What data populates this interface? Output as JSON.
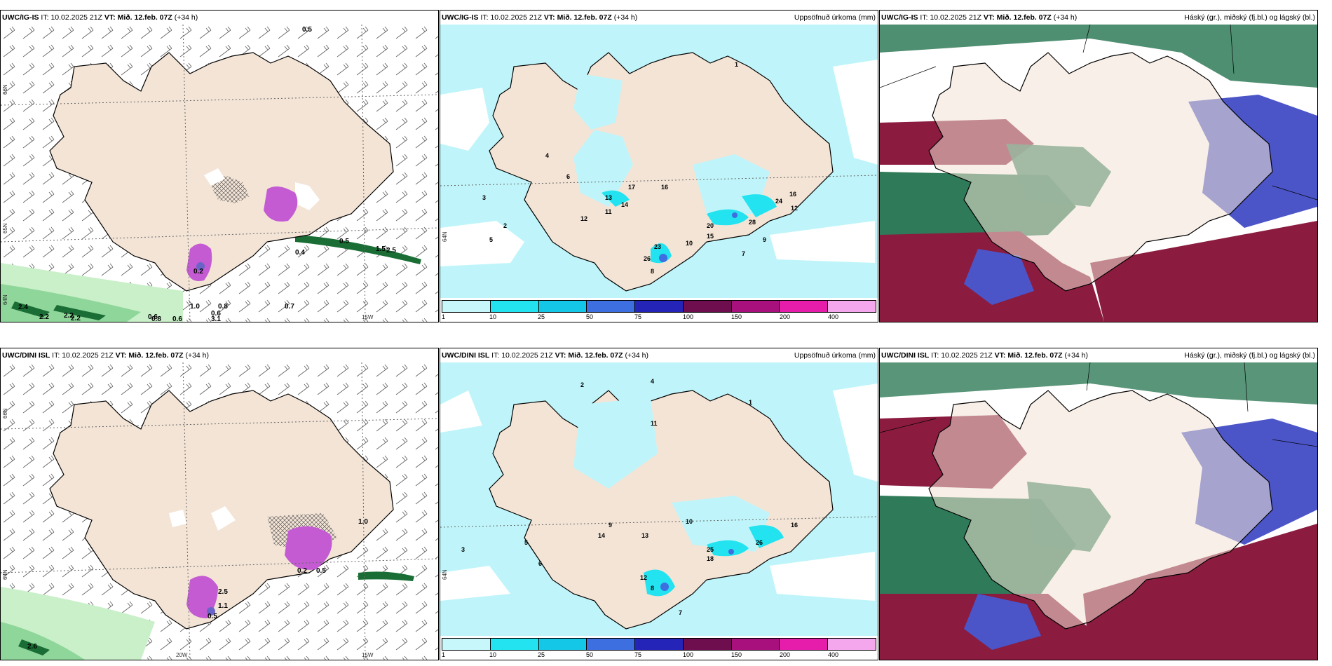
{
  "top_left": {
    "model": "UWC/IG-IS",
    "it_label": "IT:",
    "it_value": "10.02.2025 21Z",
    "vt_label": "VT:",
    "vt_value": "Mið. 12.feb. 07Z",
    "lead": "(+34 h)",
    "lat_66": "66N",
    "lat_64": "64N",
    "lat_65": "65N",
    "lon_15": "15W",
    "values": [
      "0.5",
      "0.5",
      "1.5",
      "2.5",
      "0.4",
      "0.2",
      "1.0",
      "0.8",
      "0.6",
      "0.7",
      "2.4",
      "2.2",
      "2.2",
      "2.2",
      "0.6",
      "3.1",
      "0.6",
      "0.8"
    ]
  },
  "top_mid": {
    "model": "UWC/IG-IS",
    "it_label": "IT:",
    "it_value": "10.02.2025 21Z",
    "vt_label": "VT:",
    "vt_value": "Mið. 12.feb. 07Z",
    "lead": "(+34 h)",
    "right_title": "Uppsöfnuð úrkoma (mm)",
    "lat_64": "64N",
    "values": [
      "3",
      "5",
      "2",
      "4",
      "6",
      "1",
      "17",
      "16",
      "14",
      "13",
      "11",
      "12",
      "23",
      "28",
      "20",
      "15",
      "24",
      "12",
      "16",
      "8",
      "26",
      "10",
      "7",
      "9"
    ]
  },
  "top_right": {
    "model": "UWC/IG-IS",
    "it_label": "IT:",
    "it_value": "10.02.2025 21Z",
    "vt_label": "VT:",
    "vt_value": "Mið. 12.feb. 07Z",
    "lead": "(+34 h)",
    "right_title": "Háský (gr.), miðský (fj.bl.) og lágský (bl.)"
  },
  "bottom_left": {
    "model": "UWC/DINI ISL",
    "it_label": "IT:",
    "it_value": "10.02.2025 21Z",
    "vt_label": "VT:",
    "vt_value": "Mið. 12.feb. 07Z",
    "lead": "(+34 h)",
    "lat_66": "66N",
    "lat_64": "64N",
    "lon_20": "20W",
    "lon_15": "15W",
    "values": [
      "1.0",
      "0.5",
      "2.5",
      "1.1",
      "2.6",
      "0.2",
      "0.5"
    ]
  },
  "bottom_mid": {
    "model": "UWC/DINI ISL",
    "it_label": "IT:",
    "it_value": "10.02.2025 21Z",
    "vt_label": "VT:",
    "vt_value": "Mið. 12.feb. 07Z",
    "lead": "(+34 h)",
    "right_title": "Uppsöfnuð úrkoma (mm)",
    "lat_64": "64N",
    "values": [
      "4",
      "2",
      "3",
      "1",
      "5",
      "6",
      "11",
      "9",
      "13",
      "14",
      "10",
      "25",
      "18",
      "26",
      "16",
      "8",
      "7",
      "12"
    ]
  },
  "bottom_right": {
    "model": "UWC/DINI ISL",
    "it_label": "IT:",
    "it_value": "10.02.2025 21Z",
    "vt_label": "VT:",
    "vt_value": "Mið. 12.feb. 07Z",
    "lead": "(+34 h)",
    "right_title": "Háský (gr.), miðský (fj.bl.) og lágský (bl.)"
  },
  "precip_legend": {
    "labels": [
      "1",
      "10",
      "25",
      "50",
      "75",
      "100",
      "150",
      "200",
      "400"
    ],
    "colors": [
      "#c8f7fb",
      "#22e3ef",
      "#14c7e6",
      "#3d6fe0",
      "#2524b8",
      "#6e0e4e",
      "#a8107e",
      "#e61caa",
      "#f5a7ee"
    ]
  },
  "colors": {
    "land": "#f3e4d6",
    "sea": "#ffffff",
    "precip_light": "#bff5fa",
    "wind_green_light": "#c9f0c9",
    "wind_green_dark": "#1a6e35",
    "purple": "#c45bd3",
    "cloud_high_dark": "#2f7a58",
    "cloud_mid": "#8b1c3f",
    "cloud_low": "#4b55c8"
  }
}
